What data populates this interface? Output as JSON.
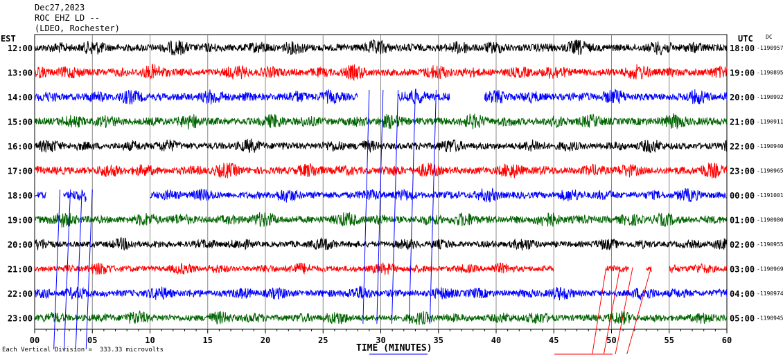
{
  "header": {
    "date": "Dec27,2023",
    "station": "ROC EHZ LD --",
    "network": "(LDEO, Rochester)"
  },
  "left_zone_label": "EST",
  "right_zone_label": "UTC",
  "dc_label": "DC",
  "footer_note": "Each Vertical Division =  333.33 microvolts",
  "chart_data": {
    "type": "line",
    "title": "Dec27,2023 ROC EHZ LD -- (LDEO, Rochester)",
    "xlabel": "TIME (MINUTES)",
    "xlim": [
      0,
      60
    ],
    "x_ticks": [
      "00",
      "05",
      "10",
      "15",
      "20",
      "25",
      "30",
      "35",
      "40",
      "45",
      "50",
      "55",
      "60"
    ],
    "grid": true,
    "series": [
      {
        "est": "12:00",
        "utc": "18:00",
        "dc": "-1190957",
        "color": "#000000",
        "amp": 1.0,
        "gaps": []
      },
      {
        "est": "13:00",
        "utc": "19:00",
        "dc": "-1190895",
        "color": "#ff0000",
        "amp": 1.0,
        "gaps": []
      },
      {
        "est": "14:00",
        "utc": "20:00",
        "dc": "-1190992",
        "color": "#0000ff",
        "amp": 1.0,
        "gaps": [
          [
            28,
            31.5
          ],
          [
            36,
            39
          ]
        ]
      },
      {
        "est": "15:00",
        "utc": "21:00",
        "dc": "-1190911",
        "color": "#006400",
        "amp": 1.0,
        "gaps": []
      },
      {
        "est": "16:00",
        "utc": "22:00",
        "dc": "-1190940",
        "color": "#000000",
        "amp": 0.9,
        "gaps": []
      },
      {
        "est": "17:00",
        "utc": "23:00",
        "dc": "-1190965",
        "color": "#ff0000",
        "amp": 1.0,
        "gaps": []
      },
      {
        "est": "18:00",
        "utc": "00:00",
        "dc": "-1191001",
        "color": "#0000ff",
        "amp": 0.9,
        "gaps": [
          [
            1,
            2.5
          ],
          [
            4.5,
            10
          ]
        ]
      },
      {
        "est": "19:00",
        "utc": "01:00",
        "dc": "-1190980",
        "color": "#006400",
        "amp": 1.0,
        "gaps": []
      },
      {
        "est": "20:00",
        "utc": "02:00",
        "dc": "-1190955",
        "color": "#000000",
        "amp": 0.8,
        "gaps": []
      },
      {
        "est": "21:00",
        "utc": "03:00",
        "dc": "-1190969",
        "color": "#ff0000",
        "amp": 0.8,
        "gaps": [
          [
            45,
            49.5
          ],
          [
            51.5,
            53
          ],
          [
            53.5,
            55
          ]
        ]
      },
      {
        "est": "22:00",
        "utc": "04:00",
        "dc": "-1190974",
        "color": "#0000ff",
        "amp": 0.9,
        "gaps": []
      },
      {
        "est": "23:00",
        "utc": "05:00",
        "dc": "-1190945",
        "color": "#006400",
        "amp": 0.9,
        "gaps": []
      }
    ]
  }
}
